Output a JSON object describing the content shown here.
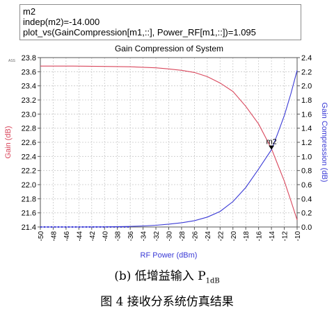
{
  "marker": {
    "line1": "m2",
    "line2": "indep(m2)=-14.000",
    "line3": "plot_vs(GainCompression[m1,::], Power_RF[m1,::])=1.095"
  },
  "chart_data": {
    "type": "line",
    "title": "Gain Compression of System",
    "xlabel": "RF Power (dBm)",
    "ylabel_left": "Gain (dB)",
    "ylabel_right": "Gain Compression (dB)",
    "corner_label": "ASS",
    "xlim": [
      -50,
      -10
    ],
    "ylim_left": [
      21.4,
      23.8
    ],
    "ylim_right": [
      0.0,
      2.4
    ],
    "x_ticks": [
      -50,
      -48,
      -46,
      -44,
      -42,
      -40,
      -38,
      -36,
      -34,
      -32,
      -30,
      -28,
      -26,
      -24,
      -22,
      -20,
      -18,
      -16,
      -14,
      -12,
      -10
    ],
    "y_ticks_left": [
      21.4,
      21.6,
      21.8,
      22.0,
      22.2,
      22.4,
      22.6,
      22.8,
      23.0,
      23.2,
      23.4,
      23.6,
      23.8
    ],
    "y_ticks_right": [
      0.0,
      0.2,
      0.4,
      0.6,
      0.8,
      1.0,
      1.2,
      1.4,
      1.6,
      1.8,
      2.0,
      2.2,
      2.4
    ],
    "grid": true,
    "series": [
      {
        "name": "Gain (dB)",
        "axis": "left",
        "color": "#d9475c",
        "x": [
          -50,
          -45,
          -40,
          -36,
          -32,
          -30,
          -28,
          -26,
          -24,
          -22,
          -20,
          -18,
          -16,
          -14,
          -13,
          -12,
          -11,
          -10
        ],
        "values": [
          23.68,
          23.68,
          23.675,
          23.67,
          23.655,
          23.64,
          23.62,
          23.59,
          23.53,
          23.44,
          23.32,
          23.11,
          22.86,
          22.51,
          22.28,
          22.05,
          21.78,
          21.5
        ]
      },
      {
        "name": "Gain Compression (dB)",
        "axis": "right",
        "color": "#3a3ad6",
        "x": [
          -50,
          -45,
          -40,
          -36,
          -34,
          -32,
          -30,
          -28,
          -26,
          -24,
          -22,
          -20,
          -18,
          -16,
          -14,
          -13,
          -12,
          -11,
          -10
        ],
        "values": [
          0.0,
          0.0,
          0.002,
          0.008,
          0.015,
          0.025,
          0.04,
          0.06,
          0.09,
          0.14,
          0.22,
          0.36,
          0.56,
          0.82,
          1.095,
          1.33,
          1.58,
          1.88,
          2.22
        ]
      }
    ],
    "marker": {
      "label": "m2",
      "x": -14,
      "y_right": 1.095
    }
  },
  "captions": {
    "sub_prefix": "(b)  低增益输入 P",
    "sub_subscript": "1dB",
    "figure": "图 4  接收分系统仿真结果"
  }
}
